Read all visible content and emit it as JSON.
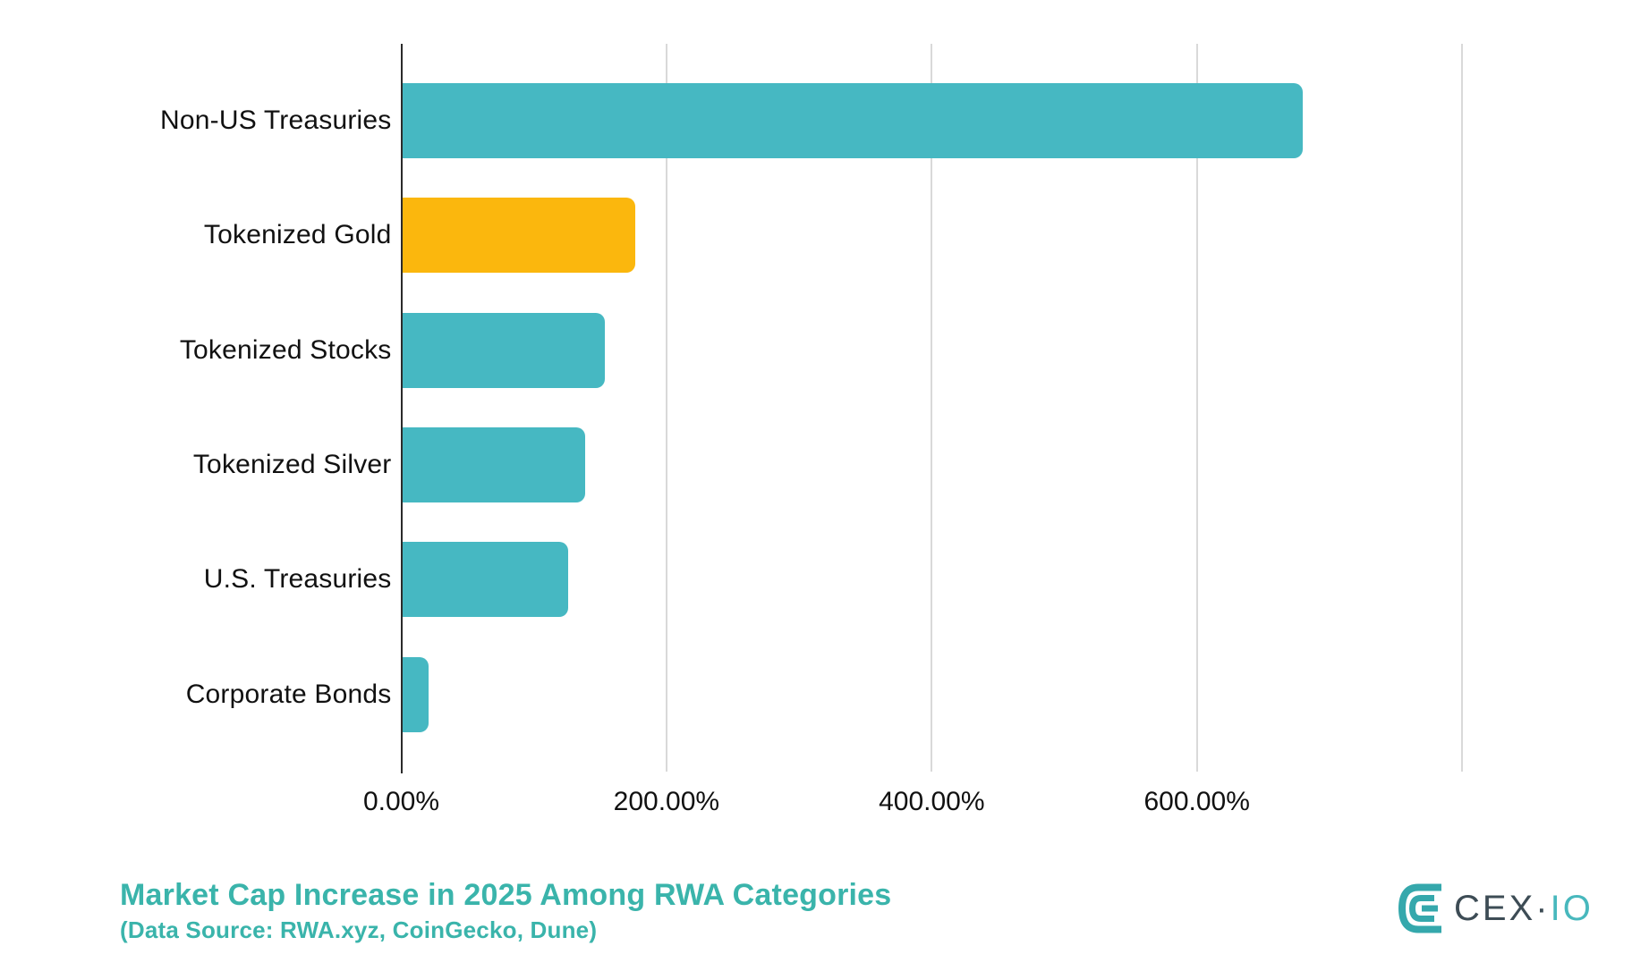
{
  "chart_data": {
    "type": "bar",
    "orientation": "horizontal",
    "title": "Market Cap Increase in 2025 Among RWA Categories",
    "subtitle": "(Data Source: RWA.xyz, CoinGecko, Dune)",
    "categories": [
      "Non-US Treasuries",
      "Tokenized Gold",
      "Tokenized Stocks",
      "Tokenized Silver",
      "U.S. Treasuries",
      "Corporate Bonds"
    ],
    "values": [
      679,
      176,
      153,
      138,
      125,
      20
    ],
    "unit": "%",
    "bar_colors": [
      "#46b8c2",
      "#fbb70d",
      "#46b8c2",
      "#46b8c2",
      "#46b8c2",
      "#46b8c2"
    ],
    "x_tick_labels": [
      "0.00%",
      "200.00%",
      "400.00%",
      "600.00%"
    ],
    "x_tick_values": [
      0,
      200,
      400,
      600
    ],
    "x_gridline_values": [
      0,
      200,
      400,
      600,
      800
    ],
    "xlim": [
      0,
      800
    ],
    "grid": true,
    "legend": "none"
  },
  "colors": {
    "bar_teal": "#46b8c2",
    "bar_gold": "#fbb70d",
    "title_teal": "#3ab4ab",
    "gridline": "#d9d9d9",
    "axis": "#2b2b2b",
    "logo_dark": "#3d4c55",
    "logo_teal": "#48b8bd",
    "logo_mark_teal": "#35a8ac"
  },
  "logo": {
    "cex": "CEX",
    "dot": "·",
    "io": "IO"
  }
}
